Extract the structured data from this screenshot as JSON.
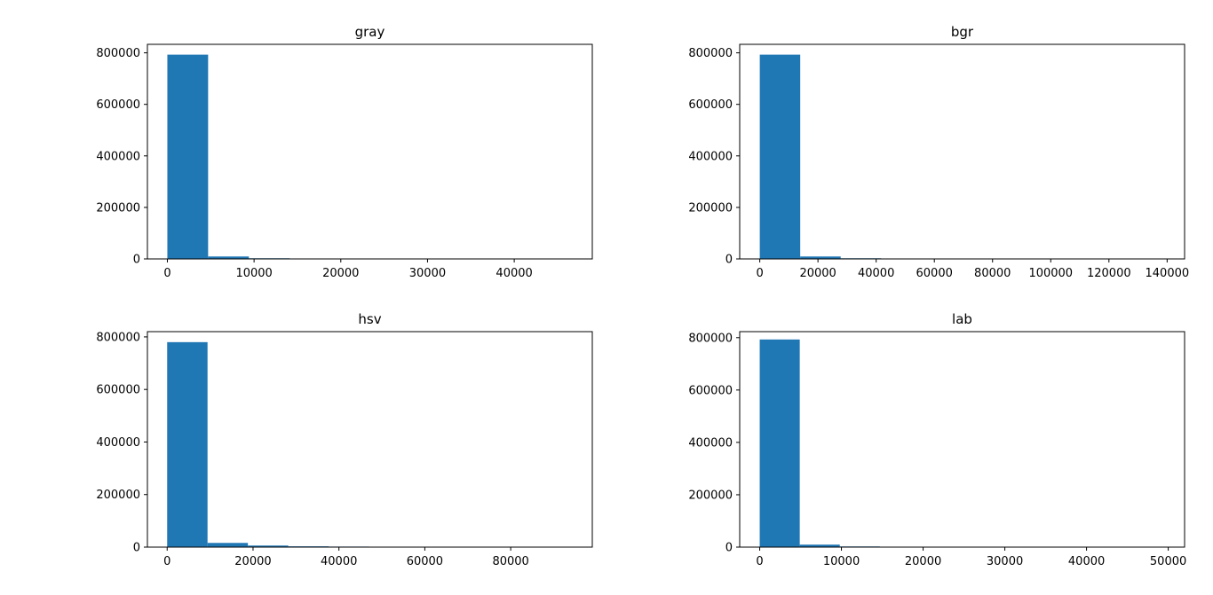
{
  "colors": {
    "bar": "#1f77b4",
    "axes": "#000000",
    "background": "#ffffff"
  },
  "chart_data": [
    {
      "type": "bar",
      "title": "gray",
      "grid": false,
      "xlim": [
        -2300,
        49000
      ],
      "ylim": [
        0,
        833000
      ],
      "xticks": [
        0,
        10000,
        20000,
        30000,
        40000
      ],
      "xtick_labels": [
        "0",
        "10000",
        "20000",
        "30000",
        "40000"
      ],
      "yticks": [
        0,
        200000,
        400000,
        600000,
        800000
      ],
      "ytick_labels": [
        "0",
        "200000",
        "400000",
        "600000",
        "800000"
      ],
      "bin_edges": [
        0,
        4700,
        9400,
        14100,
        18800,
        23500,
        28200,
        32900,
        37600,
        42300,
        47000
      ],
      "values": [
        793000,
        9500,
        2500,
        800,
        400,
        200,
        100,
        100,
        50,
        30
      ]
    },
    {
      "type": "bar",
      "title": "bgr",
      "grid": false,
      "xlim": [
        -6900,
        146000
      ],
      "ylim": [
        0,
        833000
      ],
      "xticks": [
        0,
        20000,
        40000,
        60000,
        80000,
        100000,
        120000,
        140000
      ],
      "xtick_labels": [
        "0",
        "20000",
        "40000",
        "60000",
        "80000",
        "100000",
        "120000",
        "140000"
      ],
      "yticks": [
        0,
        200000,
        400000,
        600000,
        800000
      ],
      "ytick_labels": [
        "0",
        "200000",
        "400000",
        "600000",
        "800000"
      ],
      "bin_edges": [
        0,
        13900,
        27800,
        41700,
        55600,
        69500,
        83400,
        97300,
        111200,
        125100,
        139000
      ],
      "values": [
        793000,
        9500,
        2500,
        800,
        400,
        200,
        100,
        100,
        50,
        30
      ]
    },
    {
      "type": "bar",
      "title": "hsv",
      "grid": false,
      "xlim": [
        -4600,
        99000
      ],
      "ylim": [
        0,
        820000
      ],
      "xticks": [
        0,
        20000,
        40000,
        60000,
        80000
      ],
      "xtick_labels": [
        "0",
        "20000",
        "40000",
        "60000",
        "80000"
      ],
      "yticks": [
        0,
        200000,
        400000,
        600000,
        800000
      ],
      "ytick_labels": [
        "0",
        "200000",
        "400000",
        "600000",
        "800000"
      ],
      "bin_edges": [
        0,
        9400,
        18800,
        28200,
        37600,
        47000,
        56400,
        65800,
        75200,
        84600,
        94000
      ],
      "values": [
        780000,
        16000,
        6000,
        3000,
        2000,
        800,
        400,
        200,
        100,
        50
      ]
    },
    {
      "type": "bar",
      "title": "lab",
      "grid": false,
      "xlim": [
        -2450,
        52000
      ],
      "ylim": [
        0,
        823000
      ],
      "xticks": [
        0,
        10000,
        20000,
        30000,
        40000,
        50000
      ],
      "xtick_labels": [
        "0",
        "10000",
        "20000",
        "30000",
        "40000",
        "50000"
      ],
      "yticks": [
        0,
        200000,
        400000,
        600000,
        800000
      ],
      "ytick_labels": [
        "0",
        "200000",
        "400000",
        "600000",
        "800000"
      ],
      "bin_edges": [
        0,
        4900,
        9800,
        14700,
        19600,
        24500,
        29400,
        34300,
        39200,
        44100,
        49000
      ],
      "values": [
        793000,
        9500,
        2500,
        800,
        400,
        200,
        100,
        100,
        50,
        30
      ]
    }
  ]
}
